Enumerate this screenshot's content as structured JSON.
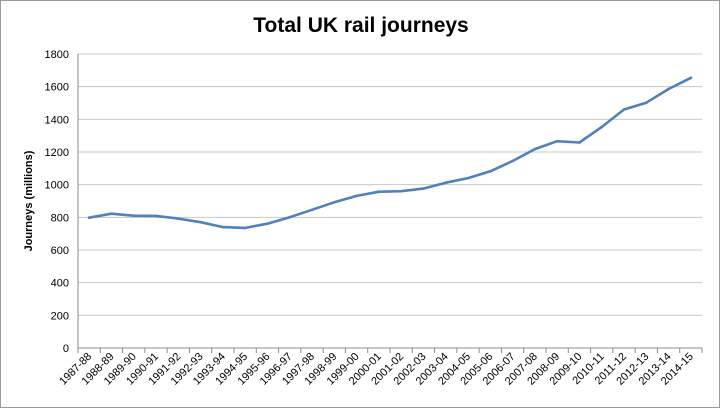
{
  "chart_data": {
    "type": "line",
    "title": "Total UK rail journeys",
    "xlabel": "",
    "ylabel": "Journeys (millions)",
    "ylim": [
      0,
      1800
    ],
    "yticks": [
      0,
      200,
      400,
      600,
      800,
      1000,
      1200,
      1400,
      1600,
      1800
    ],
    "grid": true,
    "categories": [
      "1987-88",
      "1988-89",
      "1989-90",
      "1990-91",
      "1991-92",
      "1992-93",
      "1993-94",
      "1994-95",
      "1995-96",
      "1996-97",
      "1997-98",
      "1998-99",
      "1999-00",
      "2000-01",
      "2001-02",
      "2002-03",
      "2003-04",
      "2004-05",
      "2005-06",
      "2006-07",
      "2007-08",
      "2008-09",
      "2009-10",
      "2010-11",
      "2011-12",
      "2012-13",
      "2013-14",
      "2014-15"
    ],
    "series": [
      {
        "name": "",
        "color": "#4f81bd",
        "values": [
          798,
          822,
          810,
          809,
          792,
          770,
          740,
          735,
          761,
          801,
          846,
          892,
          931,
          957,
          960,
          976,
          1012,
          1040,
          1082,
          1145,
          1218,
          1266,
          1258,
          1353,
          1460,
          1502,
          1586,
          1654
        ]
      }
    ]
  }
}
